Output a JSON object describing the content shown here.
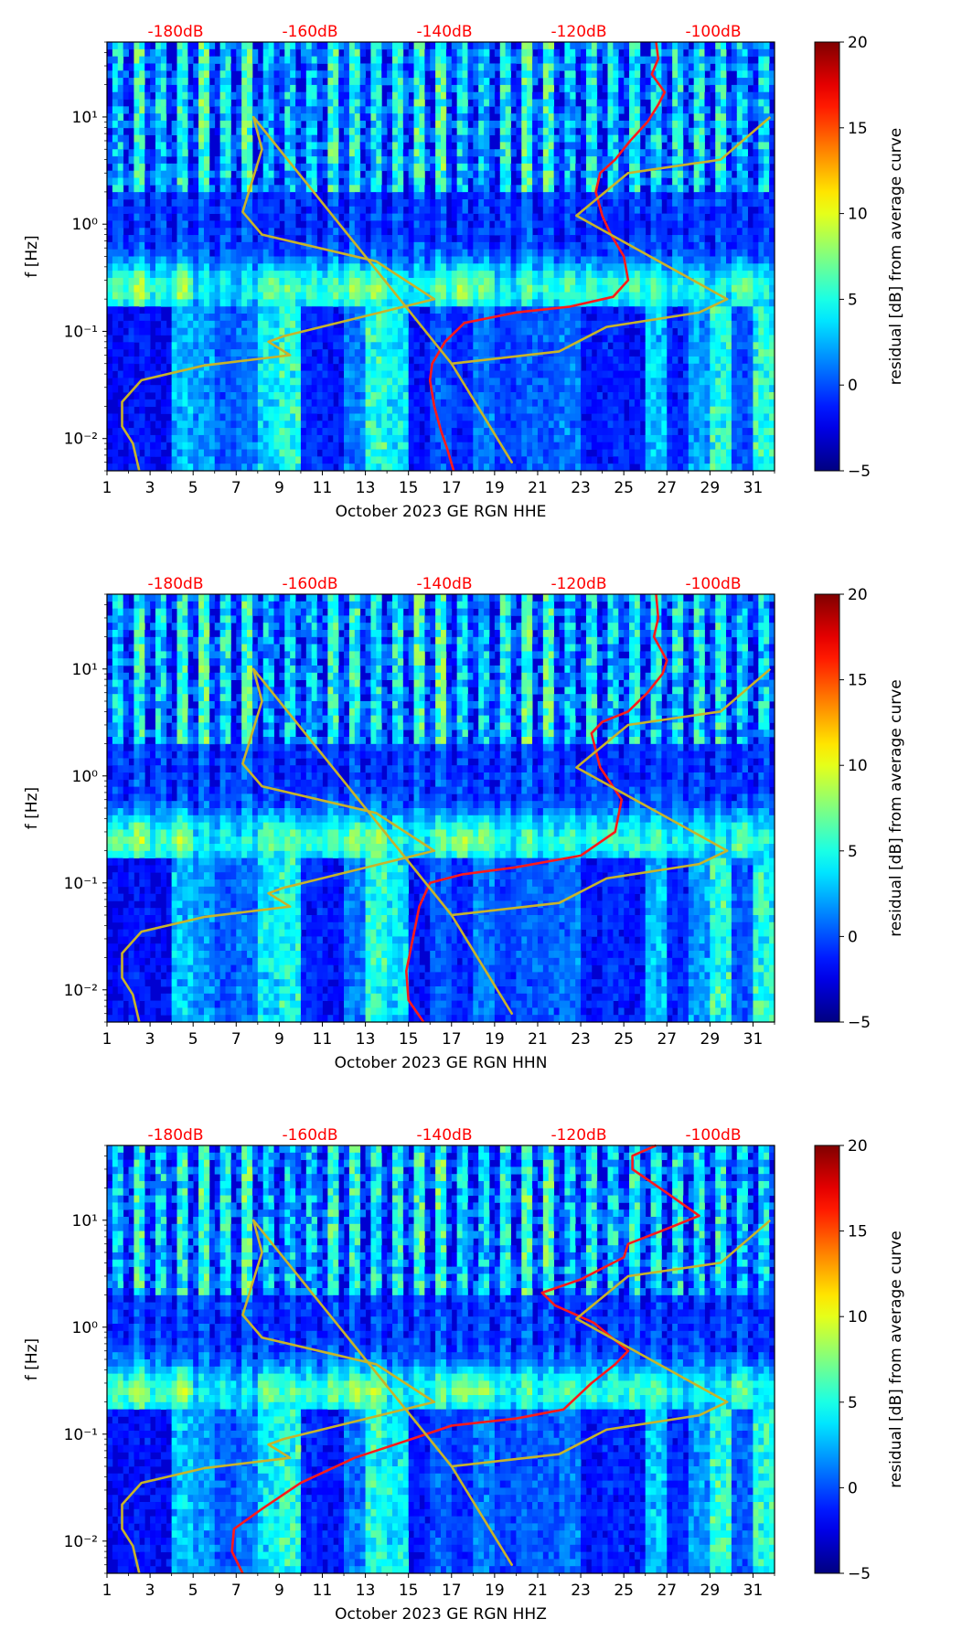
{
  "chart_data": [
    {
      "type": "heatmap",
      "xlabel": "October 2023 GE RGN  HHE",
      "ylabel": "f [Hz]",
      "x_ticks": [
        "1",
        "3",
        "5",
        "7",
        "9",
        "11",
        "13",
        "15",
        "17",
        "19",
        "21",
        "23",
        "25",
        "27",
        "29",
        "31"
      ],
      "y_ticks": [
        "10⁻²",
        "10⁻¹",
        "10⁰",
        "10¹"
      ],
      "y_scale": "log",
      "y_range": [
        0.005,
        50
      ],
      "x_range": [
        1,
        32
      ],
      "db_ticks": [
        "-180dB",
        "-160dB",
        "-140dB",
        "-120dB",
        "-100dB"
      ],
      "colorbar": {
        "label": "residual [dB] from average curve",
        "ticks": [
          "−5",
          "0",
          "5",
          "10",
          "15",
          "20"
        ],
        "range": [
          -5,
          20
        ]
      },
      "series": [
        {
          "color": "#ff1a1a",
          "curve": [
            [
              17.1,
              0.005
            ],
            [
              16.8,
              0.008
            ],
            [
              16.5,
              0.012
            ],
            [
              16.2,
              0.02
            ],
            [
              16.0,
              0.035
            ],
            [
              16.1,
              0.05
            ],
            [
              16.7,
              0.08
            ],
            [
              17.6,
              0.12
            ],
            [
              20,
              0.15
            ],
            [
              22.5,
              0.17
            ],
            [
              24.5,
              0.21
            ],
            [
              25.2,
              0.3
            ],
            [
              25.0,
              0.5
            ],
            [
              24.4,
              0.8
            ],
            [
              24.0,
              1.2
            ],
            [
              23.7,
              2
            ],
            [
              23.9,
              3
            ],
            [
              24.6,
              4
            ],
            [
              25.3,
              6
            ],
            [
              26.1,
              9
            ],
            [
              26.6,
              13
            ],
            [
              26.9,
              17
            ],
            [
              26.3,
              25
            ],
            [
              26.6,
              35
            ],
            [
              26.5,
              50
            ]
          ]
        },
        {
          "color": "#c8b42a",
          "curve": [
            [
              2.5,
              0.005
            ],
            [
              2.2,
              0.009
            ],
            [
              1.7,
              0.013
            ],
            [
              1.7,
              0.022
            ],
            [
              2.6,
              0.035
            ],
            [
              5.5,
              0.048
            ],
            [
              9.5,
              0.06
            ],
            [
              8.5,
              0.08
            ],
            [
              9.2,
              0.09
            ],
            [
              16.2,
              0.2
            ],
            [
              13.5,
              0.45
            ],
            [
              8.2,
              0.8
            ],
            [
              7.3,
              1.3
            ],
            [
              8.2,
              5
            ],
            [
              7.8,
              10
            ],
            [
              17.0,
              0.05
            ],
            [
              19.8,
              0.006
            ],
            [
              17.0,
              0.05
            ],
            [
              22.0,
              0.065
            ],
            [
              24.2,
              0.11
            ],
            [
              28.5,
              0.15
            ],
            [
              29.8,
              0.2
            ],
            [
              22.8,
              1.2
            ],
            [
              25.2,
              3
            ],
            [
              29.5,
              4
            ],
            [
              31.8,
              10
            ]
          ]
        }
      ]
    },
    {
      "type": "heatmap",
      "xlabel": "October 2023 GE RGN  HHN",
      "ylabel": "f [Hz]",
      "x_ticks": [
        "1",
        "3",
        "5",
        "7",
        "9",
        "11",
        "13",
        "15",
        "17",
        "19",
        "21",
        "23",
        "25",
        "27",
        "29",
        "31"
      ],
      "y_ticks": [
        "10⁻²",
        "10⁻¹",
        "10⁰",
        "10¹"
      ],
      "y_scale": "log",
      "y_range": [
        0.005,
        50
      ],
      "x_range": [
        1,
        32
      ],
      "db_ticks": [
        "-180dB",
        "-160dB",
        "-140dB",
        "-120dB",
        "-100dB"
      ],
      "colorbar": {
        "label": "residual [dB] from average curve",
        "ticks": [
          "−5",
          "0",
          "5",
          "10",
          "15",
          "20"
        ],
        "range": [
          -5,
          20
        ]
      },
      "series": [
        {
          "color": "#ff1a1a",
          "curve": [
            [
              15.7,
              0.005
            ],
            [
              15.0,
              0.008
            ],
            [
              14.9,
              0.015
            ],
            [
              15.2,
              0.03
            ],
            [
              15.5,
              0.06
            ],
            [
              16.0,
              0.1
            ],
            [
              17.5,
              0.12
            ],
            [
              20,
              0.14
            ],
            [
              23,
              0.18
            ],
            [
              24.6,
              0.3
            ],
            [
              24.9,
              0.6
            ],
            [
              23.9,
              1.2
            ],
            [
              23.5,
              2.5
            ],
            [
              24.0,
              3.2
            ],
            [
              25.2,
              4
            ],
            [
              26.1,
              6
            ],
            [
              26.8,
              9
            ],
            [
              27.0,
              12
            ],
            [
              26.4,
              20
            ],
            [
              26.6,
              30
            ],
            [
              26.5,
              50
            ]
          ]
        },
        {
          "color": "#c8b42a",
          "curve": [
            [
              2.5,
              0.005
            ],
            [
              2.2,
              0.009
            ],
            [
              1.7,
              0.013
            ],
            [
              1.7,
              0.022
            ],
            [
              2.6,
              0.035
            ],
            [
              5.5,
              0.048
            ],
            [
              9.5,
              0.06
            ],
            [
              8.5,
              0.08
            ],
            [
              9.2,
              0.09
            ],
            [
              16.2,
              0.2
            ],
            [
              13.5,
              0.45
            ],
            [
              8.2,
              0.8
            ],
            [
              7.3,
              1.3
            ],
            [
              8.2,
              5
            ],
            [
              7.8,
              10
            ],
            [
              17.0,
              0.05
            ],
            [
              19.8,
              0.006
            ],
            [
              17.0,
              0.05
            ],
            [
              22.0,
              0.065
            ],
            [
              24.2,
              0.11
            ],
            [
              28.5,
              0.15
            ],
            [
              29.8,
              0.2
            ],
            [
              22.8,
              1.2
            ],
            [
              25.2,
              3
            ],
            [
              29.5,
              4
            ],
            [
              31.8,
              10
            ]
          ]
        }
      ]
    },
    {
      "type": "heatmap",
      "xlabel": "October 2023 GE RGN  HHZ",
      "ylabel": "f [Hz]",
      "x_ticks": [
        "1",
        "3",
        "5",
        "7",
        "9",
        "11",
        "13",
        "15",
        "17",
        "19",
        "21",
        "23",
        "25",
        "27",
        "29",
        "31"
      ],
      "y_ticks": [
        "10⁻²",
        "10⁻¹",
        "10⁰",
        "10¹"
      ],
      "y_scale": "log",
      "y_range": [
        0.005,
        50
      ],
      "x_range": [
        1,
        32
      ],
      "db_ticks": [
        "-180dB",
        "-160dB",
        "-140dB",
        "-120dB",
        "-100dB"
      ],
      "colorbar": {
        "label": "residual [dB] from average curve",
        "ticks": [
          "−5",
          "0",
          "5",
          "10",
          "15",
          "20"
        ],
        "range": [
          -5,
          20
        ]
      },
      "series": [
        {
          "color": "#ff1a1a",
          "curve": [
            [
              7.3,
              0.005
            ],
            [
              6.8,
              0.008
            ],
            [
              6.9,
              0.013
            ],
            [
              8.2,
              0.02
            ],
            [
              10,
              0.035
            ],
            [
              12.5,
              0.06
            ],
            [
              15.5,
              0.095
            ],
            [
              17,
              0.12
            ],
            [
              20,
              0.14
            ],
            [
              22.2,
              0.17
            ],
            [
              23.5,
              0.3
            ],
            [
              24.6,
              0.45
            ],
            [
              25.2,
              0.6
            ],
            [
              23.6,
              1.1
            ],
            [
              21.8,
              1.6
            ],
            [
              21.2,
              2.1
            ],
            [
              23.0,
              2.8
            ],
            [
              25.0,
              4.5
            ],
            [
              25.2,
              6
            ],
            [
              26.8,
              8
            ],
            [
              28.5,
              11
            ],
            [
              27.0,
              18
            ],
            [
              25.4,
              30
            ],
            [
              25.4,
              40
            ],
            [
              26.5,
              50
            ]
          ]
        },
        {
          "color": "#c8b42a",
          "curve": [
            [
              2.5,
              0.005
            ],
            [
              2.2,
              0.009
            ],
            [
              1.7,
              0.013
            ],
            [
              1.7,
              0.022
            ],
            [
              2.6,
              0.035
            ],
            [
              5.5,
              0.048
            ],
            [
              9.5,
              0.06
            ],
            [
              8.5,
              0.08
            ],
            [
              9.2,
              0.09
            ],
            [
              16.2,
              0.2
            ],
            [
              13.5,
              0.45
            ],
            [
              8.2,
              0.8
            ],
            [
              7.3,
              1.3
            ],
            [
              8.2,
              5
            ],
            [
              7.8,
              10
            ],
            [
              17.0,
              0.05
            ],
            [
              19.8,
              0.006
            ],
            [
              17.0,
              0.05
            ],
            [
              22.0,
              0.065
            ],
            [
              24.2,
              0.11
            ],
            [
              28.5,
              0.15
            ],
            [
              29.8,
              0.2
            ],
            [
              22.8,
              1.2
            ],
            [
              25.2,
              3
            ],
            [
              29.5,
              4
            ],
            [
              31.8,
              10
            ]
          ]
        }
      ]
    }
  ]
}
